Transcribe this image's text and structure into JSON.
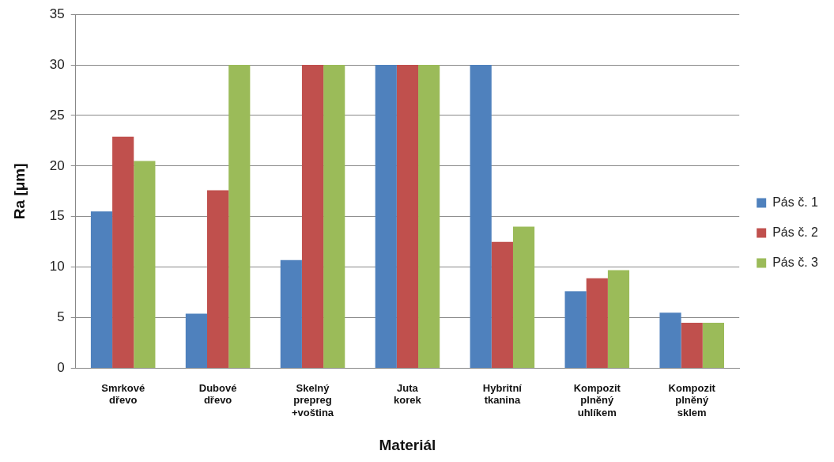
{
  "chart_data": {
    "type": "bar",
    "xlabel": "Materiál",
    "ylabel": "Ra [μm]",
    "categories": [
      "Smrkové dřevo",
      "Dubové dřevo",
      "Skelný prepreg +voština",
      "Juta korek",
      "Hybritní tkanina",
      "Kompozit plněný uhlíkem",
      "Kompozit plněný sklem"
    ],
    "series": [
      {
        "name": "Pás č. 1",
        "color": "#4f81bd",
        "values": [
          15.5,
          5.4,
          10.7,
          30,
          30,
          7.6,
          5.5
        ]
      },
      {
        "name": "Pás č. 2",
        "color": "#c0504d",
        "values": [
          22.9,
          17.6,
          30,
          30,
          12.5,
          8.9,
          4.5
        ]
      },
      {
        "name": "Pás č. 3",
        "color": "#9bbb59",
        "values": [
          20.5,
          30,
          30,
          30,
          14,
          9.7,
          4.5
        ]
      }
    ],
    "ylim": [
      0,
      35
    ],
    "yticks": [
      0,
      5,
      10,
      15,
      20,
      25,
      30,
      35
    ],
    "grid": "y",
    "legend": "right"
  }
}
